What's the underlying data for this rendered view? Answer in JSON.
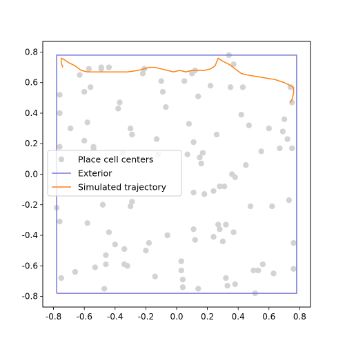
{
  "chart_data": {
    "type": "scatter",
    "title": "",
    "xlabel": "",
    "ylabel": "",
    "xlim": [
      -0.87,
      0.87
    ],
    "ylim": [
      -0.87,
      0.87
    ],
    "xticks": [
      "-0.8",
      "-0.6",
      "-0.4",
      "-0.2",
      "0.0",
      "0.2",
      "0.4",
      "0.6",
      "0.8"
    ],
    "xtick_values": [
      -0.8,
      -0.6,
      -0.4,
      -0.2,
      0.0,
      0.2,
      0.4,
      0.6,
      0.8
    ],
    "yticks": [
      "-0.8",
      "-0.6",
      "-0.4",
      "-0.2",
      "0.0",
      "0.2",
      "0.4",
      "0.6",
      "0.8"
    ],
    "ytick_values": [
      -0.8,
      -0.6,
      -0.4,
      -0.2,
      0.0,
      0.2,
      0.4,
      0.6,
      0.8
    ],
    "grid": false,
    "legend": {
      "placement": "center-left",
      "entries": [
        "Place cell centers",
        "Exterior",
        "Simulated trajectory"
      ]
    },
    "colors": {
      "place_cells": "#d3d3d3",
      "exterior": "#7777dd",
      "trajectory": "#ff7f0e"
    },
    "series": [
      {
        "name": "Place cell centers",
        "type": "scatter",
        "points": [
          [
            -0.76,
            0.52
          ],
          [
            -0.76,
            0.4
          ],
          [
            -0.76,
            0.18
          ],
          [
            -0.78,
            -0.22
          ],
          [
            -0.76,
            -0.31
          ],
          [
            -0.75,
            -0.68
          ],
          [
            -0.69,
            0.3
          ],
          [
            -0.66,
            -0.64
          ],
          [
            -0.63,
            0.65
          ],
          [
            -0.6,
            0.54
          ],
          [
            -0.6,
            0.22
          ],
          [
            -0.58,
            0.34
          ],
          [
            -0.58,
            -0.32
          ],
          [
            -0.57,
            0.69
          ],
          [
            -0.56,
            0.57
          ],
          [
            -0.54,
            0.17
          ],
          [
            -0.54,
            0.18
          ],
          [
            -0.53,
            -0.61
          ],
          [
            -0.49,
            0.7
          ],
          [
            -0.49,
            0.69
          ],
          [
            -0.48,
            -0.2
          ],
          [
            -0.47,
            -0.75
          ],
          [
            -0.46,
            -0.53
          ],
          [
            -0.46,
            -0.59
          ],
          [
            -0.44,
            0.7
          ],
          [
            -0.44,
            -0.38
          ],
          [
            -0.4,
            -0.46
          ],
          [
            -0.37,
            0.47
          ],
          [
            -0.38,
            0.43
          ],
          [
            -0.35,
            0.14
          ],
          [
            -0.34,
            -0.49
          ],
          [
            -0.34,
            -0.59
          ],
          [
            -0.32,
            -0.6
          ],
          [
            -0.3,
            0.3
          ],
          [
            -0.29,
            0.26
          ],
          [
            -0.3,
            -0.21
          ],
          [
            -0.29,
            -0.18
          ],
          [
            -0.22,
            0.66
          ],
          [
            -0.21,
            0.69
          ],
          [
            -0.2,
            -0.5
          ],
          [
            -0.18,
            -0.45
          ],
          [
            -0.14,
            -0.67
          ],
          [
            -0.13,
            0.23
          ],
          [
            -0.12,
            0.13
          ],
          [
            -0.1,
            0.61
          ],
          [
            -0.09,
            0.54
          ],
          [
            -0.07,
            0.44
          ],
          [
            -0.06,
            -0.4
          ],
          [
            0.03,
            -0.57
          ],
          [
            0.03,
            -0.63
          ],
          [
            0.04,
            -0.69
          ],
          [
            0.04,
            -0.74
          ],
          [
            0.05,
            0.61
          ],
          [
            0.07,
            0.13
          ],
          [
            0.08,
            0.33
          ],
          [
            0.1,
            0.66
          ],
          [
            0.12,
            0.68
          ],
          [
            0.11,
            0.21
          ],
          [
            0.11,
            -0.12
          ],
          [
            0.11,
            -0.36
          ],
          [
            0.12,
            -0.43
          ],
          [
            0.14,
            0.51
          ],
          [
            0.14,
            -0.75
          ],
          [
            0.15,
            0.11
          ],
          [
            0.16,
            0.07
          ],
          [
            0.17,
            0.14
          ],
          [
            0.18,
            -0.13
          ],
          [
            0.22,
            0.58
          ],
          [
            0.24,
            -0.11
          ],
          [
            0.24,
            -0.41
          ],
          [
            0.26,
            0.26
          ],
          [
            0.27,
            -0.33
          ],
          [
            0.28,
            -0.08
          ],
          [
            0.28,
            -0.36
          ],
          [
            0.3,
            -0.44
          ],
          [
            0.31,
            -0.08
          ],
          [
            0.32,
            -0.33
          ],
          [
            0.32,
            -0.68
          ],
          [
            0.33,
            -0.73
          ],
          [
            0.34,
            0.78
          ],
          [
            0.35,
            0.57
          ],
          [
            0.36,
            0.0
          ],
          [
            0.37,
            0.72
          ],
          [
            0.37,
            -0.38
          ],
          [
            0.38,
            -0.02
          ],
          [
            0.38,
            -0.72
          ],
          [
            0.42,
            0.39
          ],
          [
            0.43,
            0.57
          ],
          [
            0.45,
            0.06
          ],
          [
            0.47,
            0.32
          ],
          [
            0.48,
            -0.21
          ],
          [
            0.5,
            -0.63
          ],
          [
            0.51,
            -0.78
          ],
          [
            0.53,
            -0.63
          ],
          [
            0.55,
            0.15
          ],
          [
            0.56,
            -0.59
          ],
          [
            0.6,
            0.3
          ],
          [
            0.62,
            -0.21
          ],
          [
            0.63,
            -0.65
          ],
          [
            0.67,
            0.17
          ],
          [
            0.69,
            0.28
          ],
          [
            0.7,
            0.36
          ],
          [
            0.72,
            0.23
          ],
          [
            0.73,
            -0.17
          ],
          [
            0.74,
            0.57
          ],
          [
            0.75,
            0.47
          ],
          [
            0.75,
            0.17
          ],
          [
            0.76,
            -0.45
          ],
          [
            0.76,
            -0.62
          ]
        ]
      },
      {
        "name": "Exterior",
        "type": "line",
        "points": [
          [
            -0.78,
            -0.78
          ],
          [
            0.78,
            -0.78
          ],
          [
            0.78,
            0.78
          ],
          [
            -0.78,
            0.78
          ],
          [
            -0.78,
            -0.78
          ]
        ]
      },
      {
        "name": "Simulated trajectory",
        "type": "line",
        "points": [
          [
            -0.74,
            0.7
          ],
          [
            -0.75,
            0.73
          ],
          [
            -0.75,
            0.76
          ],
          [
            -0.73,
            0.75
          ],
          [
            -0.7,
            0.73
          ],
          [
            -0.66,
            0.71
          ],
          [
            -0.62,
            0.68
          ],
          [
            -0.58,
            0.67
          ],
          [
            -0.52,
            0.67
          ],
          [
            -0.46,
            0.67
          ],
          [
            -0.4,
            0.67
          ],
          [
            -0.32,
            0.67
          ],
          [
            -0.25,
            0.68
          ],
          [
            -0.21,
            0.69
          ],
          [
            -0.18,
            0.7
          ],
          [
            -0.14,
            0.7
          ],
          [
            -0.1,
            0.69
          ],
          [
            -0.06,
            0.68
          ],
          [
            -0.02,
            0.67
          ],
          [
            0.02,
            0.68
          ],
          [
            0.06,
            0.67
          ],
          [
            0.1,
            0.68
          ],
          [
            0.14,
            0.68
          ],
          [
            0.18,
            0.68
          ],
          [
            0.22,
            0.69
          ],
          [
            0.25,
            0.71
          ],
          [
            0.27,
            0.76
          ],
          [
            0.3,
            0.74
          ],
          [
            0.34,
            0.72
          ],
          [
            0.38,
            0.69
          ],
          [
            0.42,
            0.66
          ],
          [
            0.46,
            0.65
          ],
          [
            0.52,
            0.64
          ],
          [
            0.58,
            0.63
          ],
          [
            0.64,
            0.62
          ],
          [
            0.7,
            0.6
          ],
          [
            0.76,
            0.57
          ],
          [
            0.76,
            0.53
          ],
          [
            0.75,
            0.49
          ],
          [
            0.74,
            0.47
          ]
        ]
      }
    ]
  }
}
